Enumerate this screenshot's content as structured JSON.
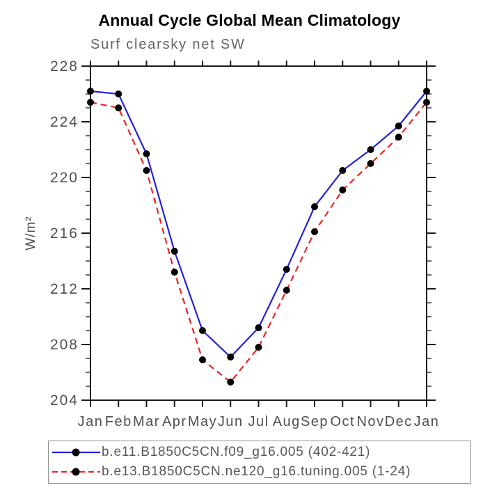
{
  "chart_data": {
    "type": "line",
    "title": "Annual Cycle Global Mean Climatology",
    "subtitle": "Surf clearsky net SW",
    "ylabel": "W/m²",
    "categories": [
      "Jan",
      "Feb",
      "Mar",
      "Apr",
      "May",
      "Jun",
      "Jul",
      "Aug",
      "Sep",
      "Oct",
      "Nov",
      "Dec",
      "Jan"
    ],
    "ylim": [
      204,
      228
    ],
    "yticks": [
      204,
      208,
      212,
      216,
      220,
      224,
      228
    ],
    "minor_tick_step": 1,
    "grid": false,
    "legend_position": "bottom",
    "marker": {
      "shape": "circle",
      "color": "#000000",
      "radius": 5
    },
    "axis_color": "#1a1a1a",
    "label_color": "#4f4f4f",
    "series": [
      {
        "name": "b.e11.B1850C5CN.f09_g16.005 (402-421)",
        "color": "#2222dd",
        "line_style": "solid",
        "values": [
          226.2,
          226.0,
          221.7,
          214.7,
          209.0,
          207.1,
          209.2,
          213.4,
          217.9,
          220.5,
          222.0,
          223.7,
          226.2
        ]
      },
      {
        "name": "b.e13.B1850C5CN.ne120_g16.tuning.005 (1-24)",
        "color": "#ee2222",
        "line_style": "dashed",
        "values": [
          225.4,
          225.0,
          220.5,
          213.2,
          206.9,
          205.3,
          207.8,
          211.9,
          216.1,
          219.1,
          221.0,
          222.9,
          225.4
        ]
      }
    ]
  }
}
